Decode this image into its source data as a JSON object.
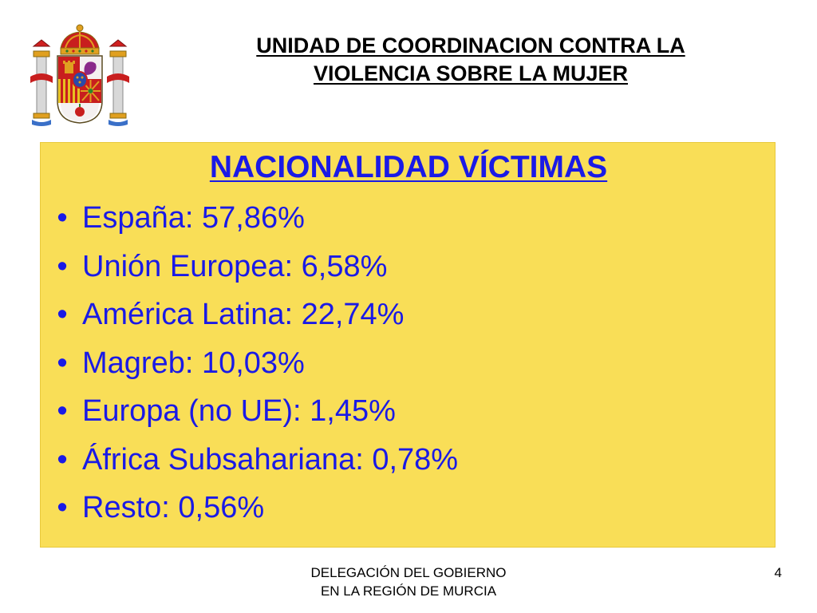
{
  "header": {
    "logo_icon": "spain-coat-of-arms-icon",
    "title_lines": [
      "UNIDAD DE COORDINACION CONTRA LA",
      "VIOLENCIA SOBRE LA MUJER"
    ]
  },
  "panel": {
    "background_color": "#f9de57",
    "text_color": "#1a1ae6",
    "heading": "NACIONALIDAD VÍCTIMAS",
    "bullet_symbol": "•",
    "items": [
      {
        "text": "España: 57,86%"
      },
      {
        "text": "Unión Europea: 6,58%"
      },
      {
        "text": "América Latina: 22,74%"
      },
      {
        "text": "Magreb: 10,03%"
      },
      {
        "text": "Europa (no UE): 1,45%"
      },
      {
        "text": "África Subsahariana: 0,78%"
      },
      {
        "text": "Resto: 0,56%"
      }
    ]
  },
  "footer": {
    "lines": [
      "DELEGACIÓN DEL GOBIERNO",
      "EN LA REGIÓN DE MURCIA"
    ],
    "page_number": "4"
  }
}
